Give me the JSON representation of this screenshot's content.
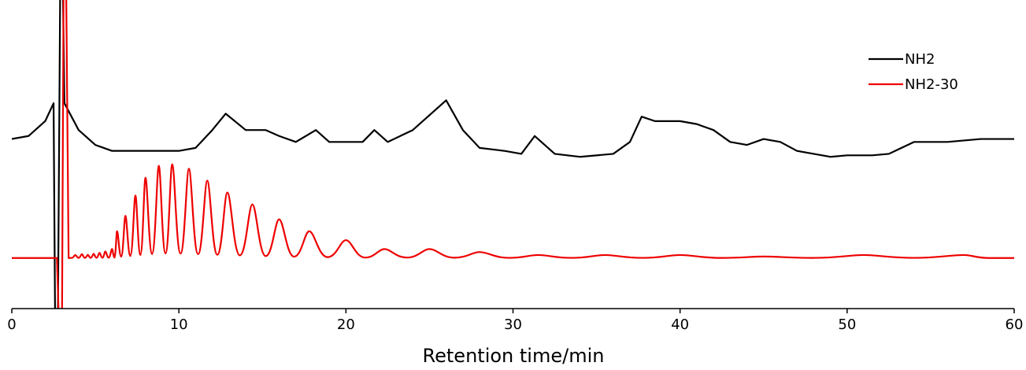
{
  "chart_data": {
    "type": "line",
    "title": "",
    "xlabel": "Retention time/min",
    "ylabel": "",
    "xlim": [
      0,
      60
    ],
    "ylim": [
      0,
      1
    ],
    "x_ticks": [
      "0",
      "10",
      "20",
      "30",
      "40",
      "50",
      "60"
    ],
    "grid": false,
    "legend_position": "top-right",
    "series": [
      {
        "name": "NH2",
        "color": "#000000",
        "baseline": 0.57,
        "points": [
          [
            0,
            0.57
          ],
          [
            1.0,
            0.58
          ],
          [
            2.0,
            0.63
          ],
          [
            2.5,
            0.69
          ],
          [
            2.6,
            -0.1
          ],
          [
            2.75,
            -0.1
          ],
          [
            2.9,
            1.1
          ],
          [
            3.05,
            1.1
          ],
          [
            3.15,
            0.69
          ],
          [
            4,
            0.6
          ],
          [
            5,
            0.55
          ],
          [
            6,
            0.53
          ],
          [
            7,
            0.53
          ],
          [
            8,
            0.53
          ],
          [
            9,
            0.53
          ],
          [
            10,
            0.53
          ],
          [
            11,
            0.54
          ],
          [
            12,
            0.6
          ],
          [
            12.8,
            0.655
          ],
          [
            14,
            0.6
          ],
          [
            15.2,
            0.6
          ],
          [
            16,
            0.58
          ],
          [
            17,
            0.56
          ],
          [
            18.2,
            0.6
          ],
          [
            19,
            0.56
          ],
          [
            20,
            0.56
          ],
          [
            21,
            0.56
          ],
          [
            21.7,
            0.6
          ],
          [
            22.5,
            0.56
          ],
          [
            24,
            0.6
          ],
          [
            26,
            0.7
          ],
          [
            27,
            0.6
          ],
          [
            28,
            0.54
          ],
          [
            29.5,
            0.53
          ],
          [
            30.5,
            0.52
          ],
          [
            31.3,
            0.58
          ],
          [
            32.5,
            0.52
          ],
          [
            34,
            0.51
          ],
          [
            36,
            0.52
          ],
          [
            37,
            0.56
          ],
          [
            37.7,
            0.645
          ],
          [
            38.5,
            0.63
          ],
          [
            40,
            0.63
          ],
          [
            41,
            0.62
          ],
          [
            42,
            0.6
          ],
          [
            43,
            0.56
          ],
          [
            44,
            0.55
          ],
          [
            45,
            0.57
          ],
          [
            46,
            0.56
          ],
          [
            47,
            0.53
          ],
          [
            48,
            0.52
          ],
          [
            49,
            0.51
          ],
          [
            50,
            0.515
          ],
          [
            51.5,
            0.515
          ],
          [
            52.5,
            0.52
          ],
          [
            54,
            0.56
          ],
          [
            56,
            0.56
          ],
          [
            58,
            0.57
          ],
          [
            60,
            0.57
          ]
        ]
      },
      {
        "name": "NH2-30",
        "color": "#ee0000",
        "baseline": 0.17,
        "points": [
          [
            0,
            0.17
          ],
          [
            2.5,
            0.17
          ],
          [
            2.7,
            0.17
          ],
          [
            2.85,
            -0.1
          ],
          [
            3.0,
            -0.1
          ],
          [
            3.1,
            1.1
          ],
          [
            3.25,
            1.1
          ],
          [
            3.4,
            0.17
          ],
          [
            3.8,
            0.18
          ],
          [
            4.0,
            0.185
          ],
          [
            4.5,
            0.18
          ],
          [
            5.0,
            0.185
          ],
          [
            5.5,
            0.19
          ],
          [
            6.0,
            0.2
          ],
          [
            6.2,
            0.25
          ],
          [
            6.7,
            0.3
          ],
          [
            7.4,
            0.38
          ],
          [
            8.0,
            0.44
          ],
          [
            8.8,
            0.48
          ],
          [
            9.6,
            0.485
          ],
          [
            10.6,
            0.47
          ],
          [
            11.7,
            0.43
          ],
          [
            12.9,
            0.39
          ],
          [
            14.4,
            0.35
          ],
          [
            16.0,
            0.3
          ],
          [
            17.8,
            0.26
          ],
          [
            20.0,
            0.23
          ],
          [
            22.3,
            0.2
          ],
          [
            25.0,
            0.2
          ],
          [
            28.0,
            0.19
          ],
          [
            31.5,
            0.18
          ],
          [
            35.5,
            0.18
          ],
          [
            40.0,
            0.18
          ],
          [
            45.0,
            0.175
          ],
          [
            51.0,
            0.18
          ],
          [
            57.0,
            0.18
          ],
          [
            60.0,
            0.17
          ]
        ],
        "oscillation_peaks_min": [
          3.8,
          4.2,
          4.55,
          4.9,
          5.25,
          5.6,
          6.0,
          6.3,
          6.8,
          7.4,
          8.0,
          8.8,
          9.6,
          10.6,
          11.7,
          12.9,
          14.4,
          16.0,
          17.8,
          20.0,
          22.3,
          25.0,
          28.0,
          31.5,
          35.5,
          40.0,
          45.0,
          51.0,
          57.0
        ]
      }
    ]
  }
}
